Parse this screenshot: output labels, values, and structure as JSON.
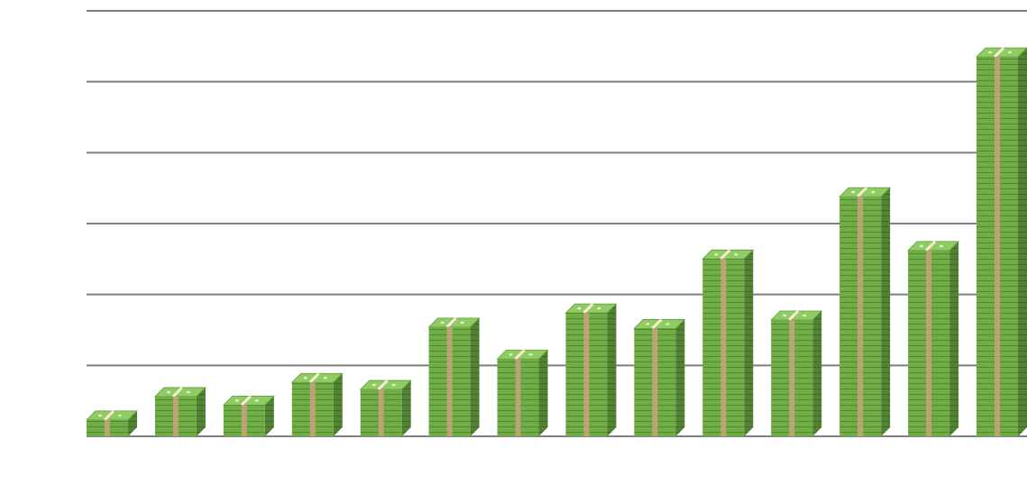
{
  "chart_data": {
    "type": "bar",
    "categories": [
      null,
      null,
      null,
      null,
      null,
      null,
      null,
      null,
      null,
      null,
      null,
      null,
      null,
      null
    ],
    "values": [
      0.23,
      0.56,
      0.44,
      0.76,
      0.66,
      1.54,
      1.09,
      1.74,
      1.52,
      2.5,
      1.64,
      3.38,
      2.62,
      5.35
    ],
    "color": "#70ad47",
    "ylim": [
      0,
      6
    ],
    "yticks": [
      0,
      1,
      2,
      3,
      4,
      5,
      6
    ],
    "grid": true
  }
}
